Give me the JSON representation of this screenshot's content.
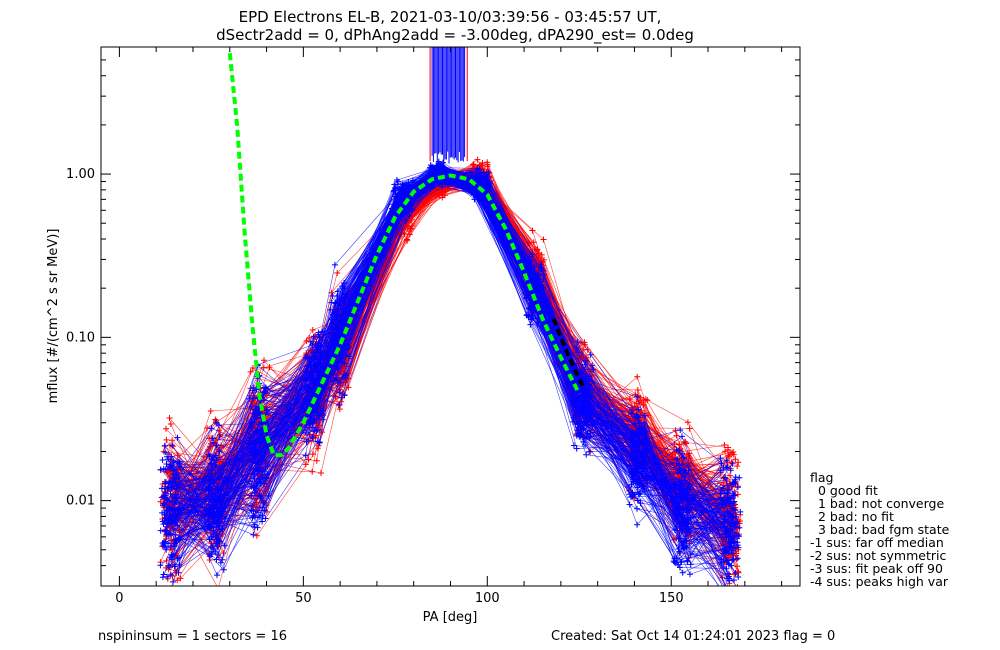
{
  "figure": {
    "title_line1": "EPD Electrons EL-B, 2021-03-10/03:39:56 - 03:45:57 UT,",
    "title_line2": "dSectr2add = 0, dPhAng2add = -3.00deg, dPA290_est=   0.0deg",
    "footer_left": "nspininsum =  1  sectors = 16",
    "footer_right": "Created: Sat Oct 14 01:24:01 2023   flag = 0"
  },
  "legend": {
    "title": "flag",
    "items": [
      "0 good fit",
      "1 bad: not converge",
      "2 bad: no fit",
      "3 bad: bad fgm state",
      "-1 sus: far off median",
      "-2 sus: not symmetric",
      "-3 sus: fit peak off 90",
      "-4 sus: peaks high var"
    ]
  },
  "chart_data": {
    "type": "line",
    "xlabel": "PA [deg]",
    "ylabel": "mflux [#/(cm^2 s sr MeV)]",
    "xlim": [
      -5,
      185
    ],
    "ylim": [
      0.003,
      6.0
    ],
    "y_scale": "log",
    "x_ticks": [
      0,
      50,
      100,
      150
    ],
    "x_tick_labels": [
      "0",
      "50",
      "100",
      "150"
    ],
    "y_ticks": [
      0.01,
      0.1,
      1.0
    ],
    "y_tick_labels": [
      "0.01",
      "0.10",
      "1.00"
    ],
    "pa_bins": [
      14,
      26,
      38,
      53,
      60,
      77,
      87,
      98,
      113,
      126,
      141,
      153,
      166
    ],
    "series": [
      {
        "color": "#ff0000",
        "marker": "+",
        "approx_count": 160,
        "typical_profile": [
          0.009,
          0.011,
          0.022,
          0.045,
          0.09,
          0.55,
          0.9,
          0.95,
          0.25,
          0.045,
          0.025,
          0.012,
          0.008
        ]
      },
      {
        "color": "#0000ff",
        "marker": "+",
        "approx_count": 160,
        "typical_profile": [
          0.008,
          0.01,
          0.02,
          0.05,
          0.11,
          0.7,
          1.0,
          0.85,
          0.2,
          0.04,
          0.018,
          0.009,
          0.007
        ]
      },
      {
        "color": "#00ff00",
        "style": "dashed",
        "x": [
          30,
          32,
          34,
          36,
          38,
          40,
          42,
          44,
          46,
          50,
          55,
          60,
          65,
          70,
          75,
          80,
          85,
          90,
          95,
          100,
          105,
          110,
          115,
          120,
          125
        ],
        "y": [
          5.5,
          2.0,
          0.45,
          0.13,
          0.045,
          0.025,
          0.019,
          0.019,
          0.021,
          0.03,
          0.052,
          0.09,
          0.17,
          0.32,
          0.55,
          0.78,
          0.93,
          0.98,
          0.93,
          0.75,
          0.46,
          0.25,
          0.13,
          0.075,
          0.045
        ]
      },
      {
        "color": "#000000",
        "style": "dashed",
        "x": [
          118,
          120,
          122,
          124,
          126
        ],
        "y": [
          0.13,
          0.1,
          0.078,
          0.062,
          0.05
        ]
      }
    ],
    "annotations": [
      {
        "type": "vertical-bars",
        "color": "#0000ff",
        "x_range": [
          85,
          94
        ],
        "y_range": [
          1.2,
          6.0
        ]
      }
    ]
  }
}
